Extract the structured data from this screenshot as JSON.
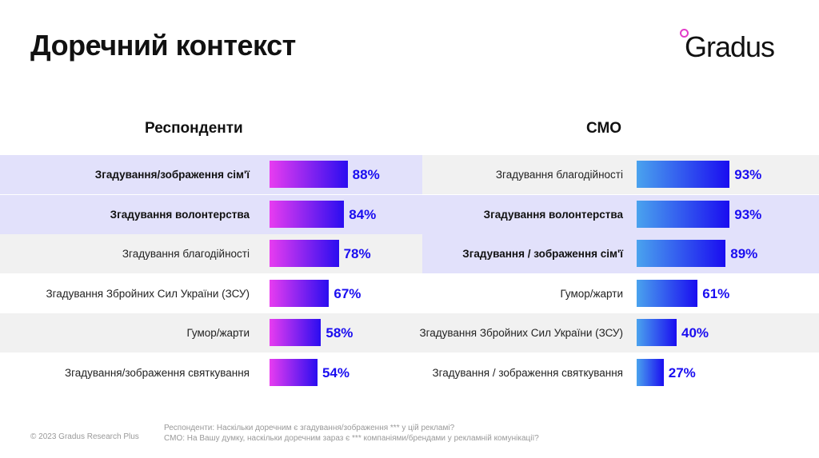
{
  "title": "Доречний контекст",
  "logo": "Gradus",
  "footer": {
    "copyright": "© 2023 Gradus Research Plus",
    "note1": "Респонденти: Наскільки доречним є згадування/зображення *** у цій рекламі?",
    "note2": "СМО: На Вашу думку, наскільки доречним зараз є ***  компаніями/брендами у рекламній комунікації?"
  },
  "colors": {
    "highlight": "#e2e1fb",
    "stripe": "#f1f1f1",
    "left_bar_start": "#e83cf0",
    "left_bar_end": "#2a0df0",
    "right_bar_start": "#4aa3ee",
    "right_bar_end": "#1a0df0",
    "value": "#1a0df0"
  },
  "chart_data": [
    {
      "type": "bar",
      "orientation": "horizontal",
      "title": "Респонденти",
      "unit": "%",
      "categories": [
        "Згадування/зображення сім'ї",
        "Згадування волонтерства",
        "Згадування благодійності",
        "Згадування Збройних Сил України (ЗСУ)",
        "Гумор/жарти",
        "Згадування/зображення святкування"
      ],
      "values": [
        88,
        84,
        78,
        67,
        58,
        54
      ],
      "labels": [
        "88%",
        "84%",
        "78%",
        "67%",
        "58%",
        "54%"
      ],
      "highlighted": [
        true,
        true,
        false,
        false,
        false,
        false
      ]
    },
    {
      "type": "bar",
      "orientation": "horizontal",
      "title": "СМО",
      "unit": "%",
      "categories": [
        "Згадування благодійності",
        "Згадування волонтерства",
        "Згадування / зображення сім'ї",
        "Гумор/жарти",
        "Згадування Збройних Сил України (ЗСУ)",
        "Згадування / зображення святкування"
      ],
      "values": [
        93,
        93,
        89,
        61,
        40,
        27
      ],
      "labels": [
        "93%",
        "93%",
        "89%",
        "61%",
        "40%",
        "27%"
      ],
      "highlighted": [
        false,
        true,
        true,
        false,
        false,
        false
      ]
    }
  ]
}
